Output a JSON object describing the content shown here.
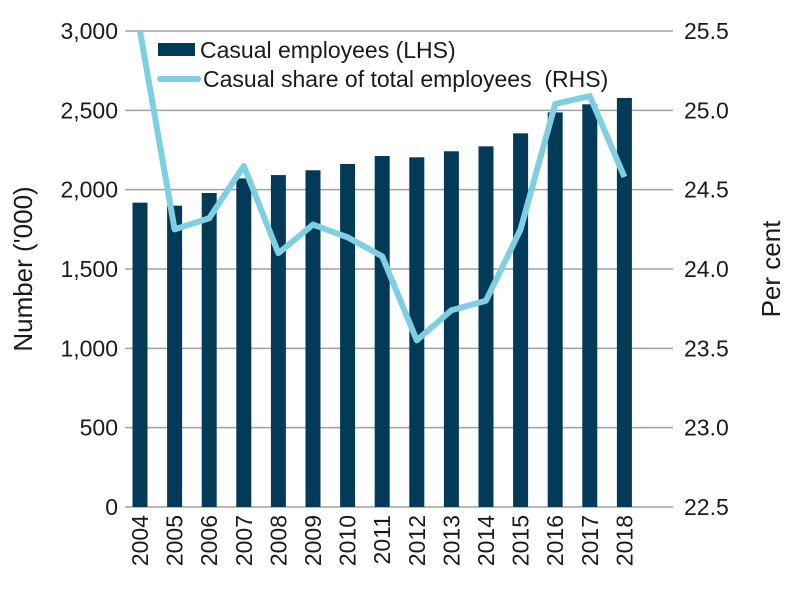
{
  "chart_data": {
    "type": "bar+line",
    "categories": [
      "2004",
      "2005",
      "2006",
      "2007",
      "2008",
      "2009",
      "2010",
      "2011",
      "2012",
      "2013",
      "2014",
      "2015",
      "2016",
      "2017",
      "2018"
    ],
    "series": [
      {
        "name": "Casual employees (LHS)",
        "type": "bar",
        "axis": "left",
        "color": "#033a58",
        "values": [
          1918,
          1899,
          1979,
          2071,
          2092,
          2122,
          2162,
          2212,
          2204,
          2242,
          2273,
          2355,
          2487,
          2538,
          2578
        ]
      },
      {
        "name": "Casual share of total employees  (RHS)",
        "type": "line",
        "axis": "right",
        "color": "#7ecfe2",
        "values": [
          25.5,
          24.25,
          24.32,
          24.65,
          24.1,
          24.28,
          24.2,
          24.08,
          23.55,
          23.74,
          23.8,
          24.25,
          25.04,
          25.09,
          24.58
        ]
      }
    ],
    "ylabel": "Number ('000)",
    "y2label": "Per cent",
    "ylim": [
      0,
      3000
    ],
    "y2lim": [
      22.5,
      25.5
    ],
    "yticks": [
      "0",
      "500",
      "1,000",
      "1,500",
      "2,000",
      "2,500",
      "3,000"
    ],
    "y2ticks": [
      "22.5",
      "23.0",
      "23.5",
      "24.0",
      "24.5",
      "25.0",
      "25.5"
    ],
    "grid": true,
    "legend": "top"
  }
}
